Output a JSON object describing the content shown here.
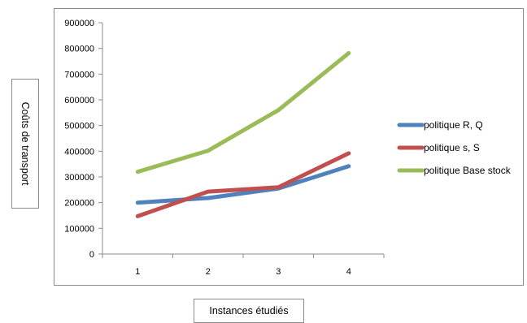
{
  "chart_data": {
    "type": "line",
    "xlabel": "Instances étudiés",
    "ylabel": "Coûts de transport",
    "categories": [
      "1",
      "2",
      "3",
      "4"
    ],
    "ylim": [
      0,
      900000
    ],
    "yticks": [
      "0",
      "100000",
      "200000",
      "300000",
      "400000",
      "500000",
      "600000",
      "700000",
      "800000",
      "900000"
    ],
    "grid": false,
    "legend": "right",
    "series": [
      {
        "name": "politique R, Q",
        "color": "#4f81bd",
        "values": [
          200000,
          218000,
          255000,
          342000
        ]
      },
      {
        "name": "politique s, S",
        "color": "#c0504d",
        "values": [
          147000,
          243000,
          260000,
          392000
        ]
      },
      {
        "name": "politique Base stock",
        "color": "#9bbb59",
        "values": [
          320000,
          402000,
          560000,
          782000
        ]
      }
    ]
  }
}
